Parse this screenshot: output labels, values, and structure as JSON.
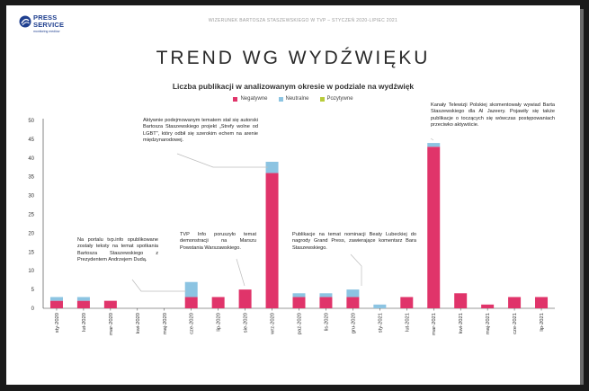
{
  "brand": {
    "name": "PRESS\nSERVICE",
    "tagline": "monitoring mediów"
  },
  "header": {
    "text": "WIZERUNEK BARTOSZA STASZEWSKIEGO W TVP – STYCZEŃ 2020-LIPIEC 2021"
  },
  "title": "TREND WG WYDŹWIĘKU",
  "subtitle": "Liczba publikacji w analizowanym okresie w podziale na wydźwięk",
  "colors": {
    "negatywne": "#e0346a",
    "neutralne": "#8cc4e2",
    "pozytywne": "#b8cc3a",
    "axis": "#333333",
    "grid": "#e6e6e6",
    "annotation_line": "#bdbdbd"
  },
  "annotations": {
    "a1": "Aktywnie podejmowanym tematem stał się autorski Bartosza Staszewskiego projekt „Strefy wolne od LGBT\", który odbił się szerokim echem na arenie międzynarodowej.",
    "a2": "Na portalu tvp.info opublikowane zostały teksty na temat spotkania Bartosza Staszewskiego z Prezydentem Andrzejem Dudą.",
    "a3": "TVP Info poruszyło temat demonstracji na Marszu Powstania Warszawskiego.",
    "a4": "Publikacje na temat nominacji Beaty Lubeckiej do nagrody Grand Press, zawierające komentarz Bara Staszewskiego.",
    "a5": "Kanały Telewizji Polskiej skomentowały wywiad Barta Staszewskiego dla Al Jazeery. Pojawiły się także publikacje o toczących się wówczas postępowaniach przeciwko aktywiście."
  },
  "chart_data": {
    "type": "bar",
    "stacked": true,
    "title": "Liczba publikacji w analizowanym okresie w podziale na wydźwięk",
    "xlabel": "",
    "ylabel": "",
    "ylim": [
      0,
      50
    ],
    "yticks": [
      0,
      5,
      10,
      15,
      20,
      25,
      30,
      35,
      40,
      45,
      50
    ],
    "grid": false,
    "legend_position": "top",
    "categories": [
      "sty-2020",
      "lut-2020",
      "mar-2020",
      "kwi-2020",
      "maj-2020",
      "cze-2020",
      "lip-2020",
      "sie-2020",
      "wrz-2020",
      "paź-2020",
      "lis-2020",
      "gru-2020",
      "sty-2021",
      "lut-2021",
      "mar-2021",
      "kwi-2021",
      "maj-2021",
      "cze-2021",
      "lip-2021"
    ],
    "series": [
      {
        "name": "Negatywne",
        "color": "#e0346a",
        "values": [
          2,
          2,
          2,
          0,
          0,
          3,
          3,
          5,
          36,
          3,
          3,
          3,
          0,
          3,
          43,
          4,
          1,
          3,
          3
        ]
      },
      {
        "name": "Neutralne",
        "color": "#8cc4e2",
        "values": [
          1,
          1,
          0,
          0,
          0,
          4,
          0,
          0,
          3,
          1,
          1,
          2,
          1,
          0,
          1,
          0,
          0,
          0,
          0
        ]
      },
      {
        "name": "Pozytywne",
        "color": "#b8cc3a",
        "values": [
          0,
          0,
          0,
          0,
          0,
          0,
          0,
          0,
          0,
          0,
          0,
          0,
          0,
          0,
          0,
          0,
          0,
          0,
          0
        ]
      }
    ]
  }
}
